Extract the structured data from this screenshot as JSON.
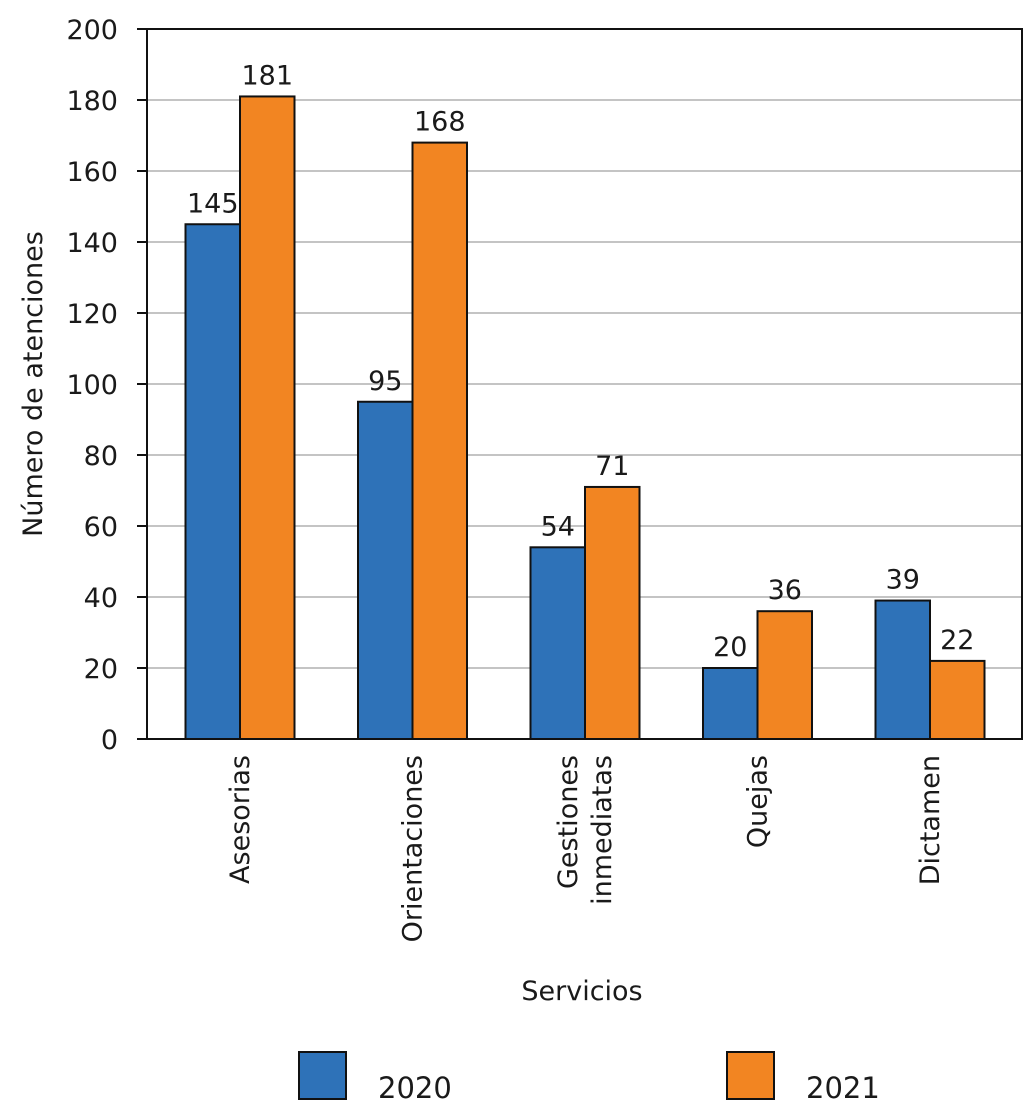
{
  "chart_data": {
    "type": "bar",
    "title": "",
    "xlabel": "Servicios",
    "ylabel": "Número de atenciones",
    "ylim": [
      0,
      200
    ],
    "yticks": [
      0,
      20,
      40,
      60,
      80,
      100,
      120,
      140,
      160,
      180,
      200
    ],
    "grid": true,
    "legend_position": "bottom",
    "categories": [
      [
        "Asesorias"
      ],
      [
        "Orientaciones"
      ],
      [
        "Gestiones",
        "inmediatas"
      ],
      [
        "Quejas"
      ],
      [
        "Dictamen"
      ]
    ],
    "series": [
      {
        "name": "2020",
        "color": "#2e72b8",
        "values": [
          145,
          95,
          54,
          20,
          39
        ]
      },
      {
        "name": "2021",
        "color": "#f28522",
        "values": [
          181,
          168,
          71,
          36,
          22
        ]
      }
    ]
  }
}
